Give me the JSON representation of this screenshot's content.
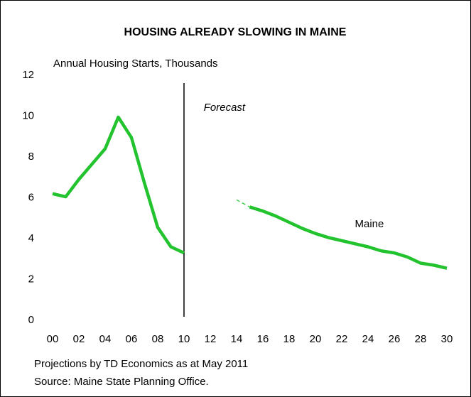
{
  "chart_data": {
    "type": "line",
    "title": "HOUSING ALREADY SLOWING IN MAINE",
    "y_axis_label": "Annual Housing Starts, Thousands",
    "x": [
      0,
      1,
      2,
      3,
      4,
      5,
      6,
      7,
      8,
      9,
      10,
      11,
      12,
      13,
      14,
      15,
      16,
      17,
      18,
      19,
      20,
      21,
      22,
      23,
      24,
      25,
      26,
      27,
      28,
      29,
      30
    ],
    "series": [
      {
        "name": "Maine",
        "color": "#22c32e",
        "dashed": false,
        "values": [
          6.2,
          6.05,
          6.9,
          7.65,
          8.4,
          9.95,
          8.95,
          6.7,
          4.55,
          3.6,
          3.3,
          null,
          null,
          null,
          null,
          5.55,
          5.35,
          5.1,
          4.8,
          4.5,
          4.25,
          4.05,
          3.9,
          3.75,
          3.6,
          3.4,
          3.3,
          3.1,
          2.8,
          2.7,
          2.55
        ]
      },
      {
        "color": "#22c32e",
        "dashed": true,
        "values": [
          null,
          null,
          null,
          null,
          null,
          null,
          null,
          null,
          null,
          null,
          3.3,
          null,
          null,
          null,
          5.9,
          5.55,
          null,
          null,
          null,
          null,
          null,
          null,
          null,
          null,
          null,
          null,
          null,
          null,
          null,
          null,
          null
        ]
      }
    ],
    "xlim": [
      0,
      30
    ],
    "xticks": [
      {
        "value": 0,
        "label": "00"
      },
      {
        "value": 2,
        "label": "02"
      },
      {
        "value": 4,
        "label": "04"
      },
      {
        "value": 6,
        "label": "06"
      },
      {
        "value": 8,
        "label": "08"
      },
      10,
      12,
      14,
      16,
      18,
      20,
      22,
      24,
      26,
      28,
      30
    ],
    "ylim": [
      0,
      12
    ],
    "yticks": [
      0,
      2,
      4,
      6,
      8,
      10,
      12
    ],
    "grid": false,
    "forecast_x": 10,
    "annotations": [
      {
        "text": "Forecast",
        "x": 11.5,
        "y": 10.4
      },
      {
        "text": "Maine",
        "x": 23,
        "y": 4.7
      }
    ],
    "notes": [
      "Projections by TD Economics as at May 2011",
      "Source: Maine State Planning Office."
    ]
  }
}
